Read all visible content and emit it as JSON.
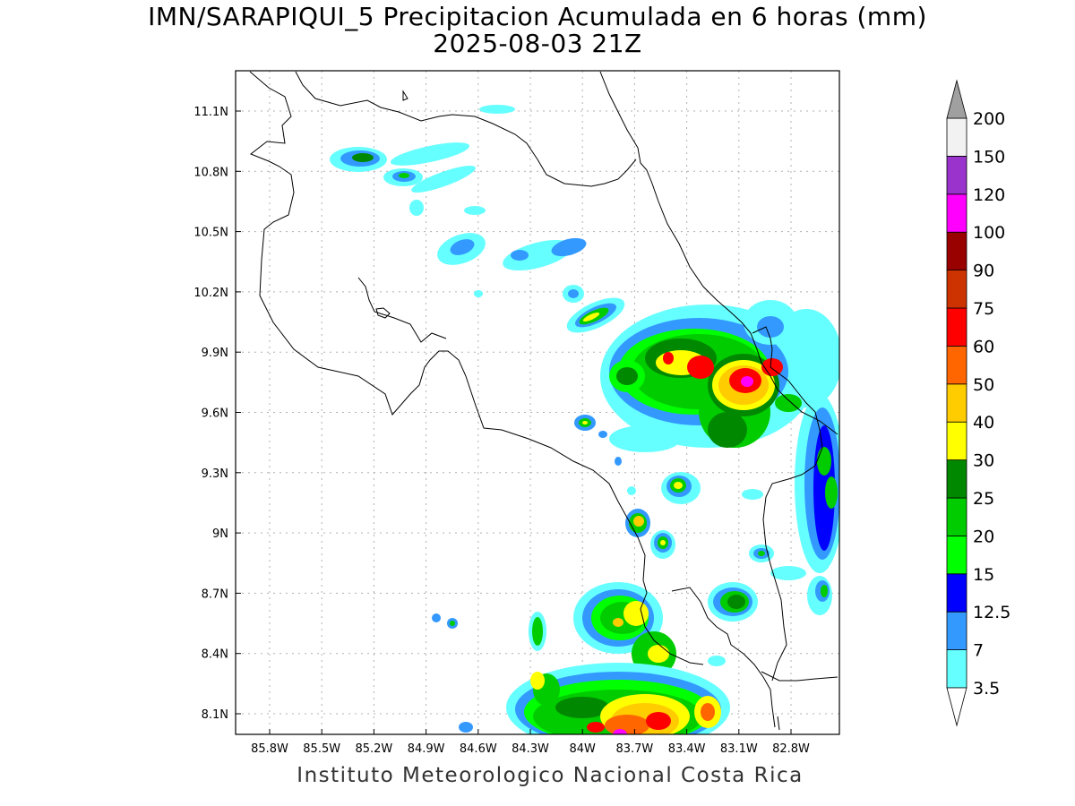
{
  "title": {
    "line1": "IMN/SARAPIQUI_5 Precipitacion Acumulada en 6 horas (mm)",
    "line2": "2025-08-03 21Z"
  },
  "footer": "Instituto Meteorologico Nacional Costa Rica",
  "axes": {
    "lon_ticks": [
      "85.8W",
      "85.5W",
      "85.2W",
      "84.9W",
      "84.6W",
      "84.3W",
      "84W",
      "83.7W",
      "83.4W",
      "83.1W",
      "82.8W"
    ],
    "lat_ticks": [
      "11.1N",
      "10.8N",
      "10.5N",
      "10.2N",
      "9.9N",
      "9.6N",
      "9.3N",
      "9N",
      "8.7N",
      "8.4N",
      "8.1N"
    ]
  },
  "colorbar": {
    "levels": [
      "3.5",
      "7",
      "12.5",
      "15",
      "20",
      "25",
      "30",
      "40",
      "50",
      "60",
      "75",
      "90",
      "100",
      "120",
      "150",
      "200"
    ],
    "colors": [
      "#66ffff",
      "#3399ff",
      "#0000ff",
      "#00ff00",
      "#00cc00",
      "#008800",
      "#ffff00",
      "#ffcc00",
      "#ff6600",
      "#ff0000",
      "#cc3300",
      "#990000",
      "#ff00ff",
      "#9933cc",
      "#f2f2f2"
    ],
    "over_color": "#a0a0a0",
    "under_color": "#ffffff"
  }
}
